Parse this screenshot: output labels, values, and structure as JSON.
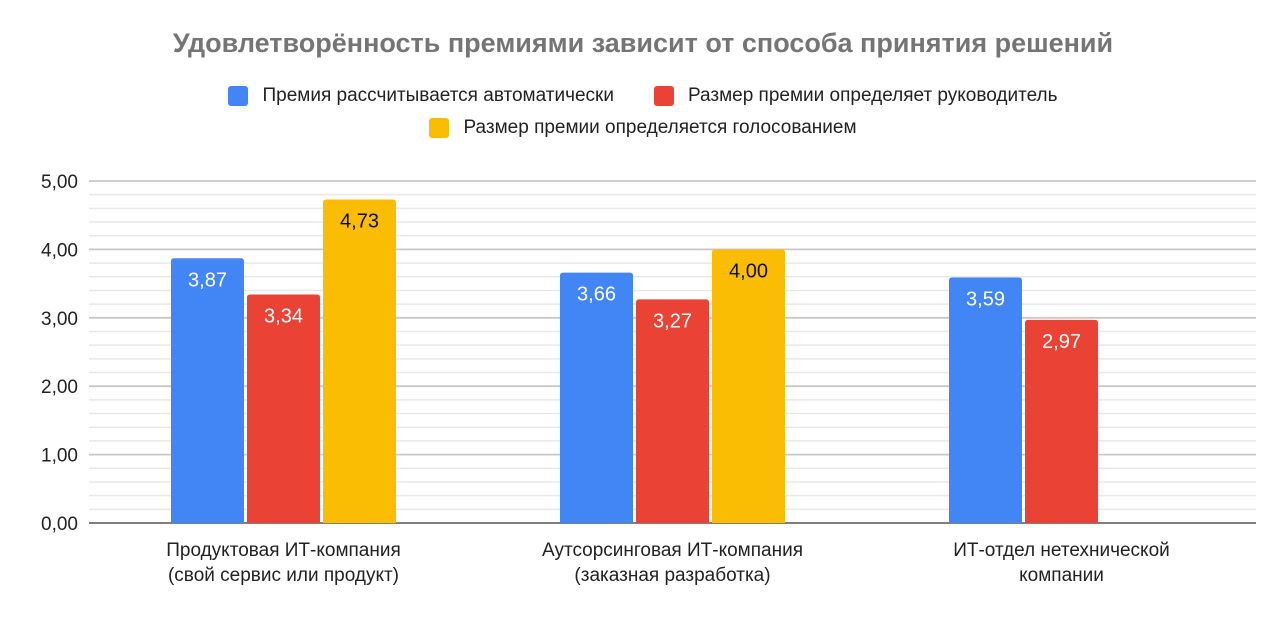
{
  "chart_data": {
    "type": "bar",
    "title": "Удовлетворённость премиями зависит от способа принятия решений",
    "categories": [
      [
        "Продуктовая ИТ-компания",
        "(свой сервис или продукт)"
      ],
      [
        "Аутсорсинговая ИТ-компания",
        "(заказная разработка)"
      ],
      [
        "ИТ-отдел нетехнической",
        "компании"
      ]
    ],
    "series": [
      {
        "name": "Премия рассчитывается автоматически",
        "color": "#4285F4",
        "values": [
          3.87,
          3.66,
          3.59
        ],
        "labels": [
          "3,87",
          "3,66",
          "3,59"
        ]
      },
      {
        "name": "Размер премии определяет руководитель",
        "color": "#EA4335",
        "values": [
          3.34,
          3.27,
          2.97
        ],
        "labels": [
          "3,34",
          "3,27",
          "2,97"
        ]
      },
      {
        "name": "Размер премии определяется голосованием",
        "color": "#FBBC04",
        "values": [
          4.73,
          4.0,
          null
        ],
        "labels": [
          "4,73",
          "4,00",
          ""
        ]
      }
    ],
    "ylim": [
      0,
      5
    ],
    "yticks": [
      0,
      1,
      2,
      3,
      4,
      5
    ],
    "ytick_labels": [
      "0,00",
      "1,00",
      "2,00",
      "3,00",
      "4,00",
      "5,00"
    ],
    "minor_grid_step": 0.2,
    "grid": true,
    "legend_position": "top",
    "xlabel": "",
    "ylabel": ""
  }
}
